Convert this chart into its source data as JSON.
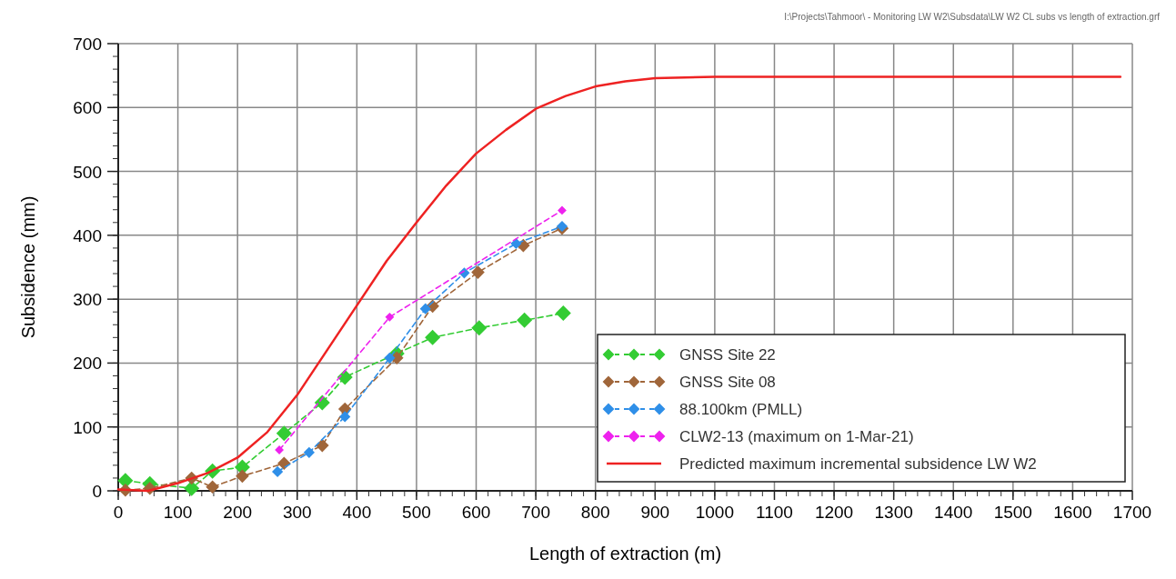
{
  "chart_data": {
    "type": "line",
    "xlabel": "Length of extraction (m)",
    "ylabel": "Subsidence (mm)",
    "annotations": [
      "I:\\Projects\\Tahmoor\\ - Monitoring LW W2\\Subsdata\\LW W2 CL subs vs length of extraction.grf"
    ],
    "xlim": [
      0,
      1700
    ],
    "ylim": [
      0,
      700
    ],
    "xticks": [
      0,
      100,
      200,
      300,
      400,
      500,
      600,
      700,
      800,
      900,
      1000,
      1100,
      1200,
      1300,
      1400,
      1500,
      1600,
      1700
    ],
    "yticks": [
      0,
      100,
      200,
      300,
      400,
      500,
      600,
      700
    ],
    "grid": true,
    "legend": "bottom right",
    "series": [
      {
        "name": "GNSS Site 22",
        "color": "#33cc33",
        "marker": "diamond",
        "line_style": "dashed",
        "x": [
          12,
          53,
          123,
          158,
          208,
          278,
          342,
          380,
          467,
          527,
          605,
          681,
          746
        ],
        "values": [
          16,
          11,
          4,
          31,
          37,
          90,
          138,
          178,
          215,
          240,
          255,
          267,
          278
        ]
      },
      {
        "name": "GNSS Site 08",
        "color": "#a0663a",
        "marker": "diamond",
        "line_style": "dashed",
        "x": [
          12,
          53,
          123,
          158,
          208,
          278,
          342,
          380,
          467,
          527,
          603,
          679,
          744
        ],
        "values": [
          1,
          4,
          20,
          6,
          23,
          43,
          71,
          128,
          208,
          289,
          342,
          384,
          411
        ]
      },
      {
        "name": "88.100km (PMLL)",
        "color": "#2f8fe8",
        "marker": "diamond",
        "line_style": "dashed",
        "x": [
          267,
          320,
          380,
          455,
          515,
          580,
          667,
          744
        ],
        "values": [
          30,
          60,
          116,
          208,
          285,
          341,
          387,
          414
        ]
      },
      {
        "name": "CLW2-13 (maximum on 1-Mar-21)",
        "color": "#ee22ee",
        "marker": "diamond",
        "line_style": "dashed",
        "x": [
          270,
          455,
          744
        ],
        "values": [
          64,
          272,
          439
        ]
      },
      {
        "name": "Predicted maximum incremental subsidence LW W2",
        "color": "#ee2222",
        "marker": "none",
        "line_style": "solid",
        "x": [
          0,
          50,
          100,
          150,
          200,
          250,
          300,
          350,
          400,
          450,
          500,
          550,
          600,
          650,
          700,
          750,
          800,
          850,
          900,
          1000,
          1200,
          1680
        ],
        "values": [
          2,
          0,
          12,
          28,
          52,
          92,
          150,
          220,
          290,
          360,
          420,
          478,
          528,
          565,
          598,
          618,
          633,
          641,
          646,
          648,
          648,
          648
        ]
      }
    ]
  }
}
